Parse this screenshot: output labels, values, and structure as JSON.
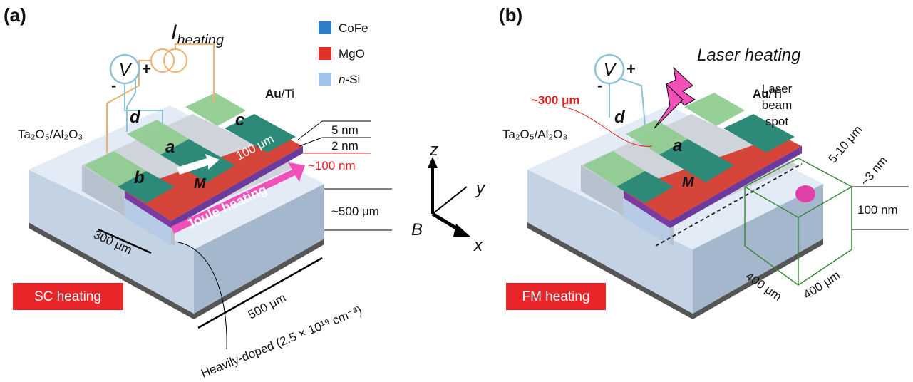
{
  "panel_a": {
    "label": "(a)",
    "current": {
      "main": "I",
      "sub": "heating"
    },
    "voltmeter": "V",
    "plus": "+",
    "minus": "-",
    "legend": [
      {
        "text": "CoFe"
      },
      {
        "text": "MgO"
      },
      {
        "italic": "n",
        "text": "-Si"
      }
    ],
    "electrode": {
      "bold": "Au",
      "rest": "/Ti"
    },
    "contacts": [
      "d",
      "c",
      "a",
      "b"
    ],
    "magnetization": "M",
    "layers": [
      "5 nm",
      "2 nm",
      "~100 nm"
    ],
    "width": "100 μm",
    "insulator": "Ta₂O₅/Al₂O₃",
    "heating": "Joule heating",
    "thickness": "~500 μm",
    "channel_width": "300 μm",
    "length": "500 μm",
    "doping": "Heavily-doped (2.5 × 10¹⁹ cm⁻³)",
    "badge": "SC heating"
  },
  "axes": {
    "z": "z",
    "y": "y",
    "x": "x",
    "field": "B"
  },
  "panel_b": {
    "label": "(b)",
    "title": "Laser heating",
    "voltmeter": "V",
    "plus": "+",
    "minus": "-",
    "distance": "~300 μm",
    "contacts": [
      "d",
      "a"
    ],
    "electrode": {
      "bold": "Au",
      "rest": "/Ti"
    },
    "spot": [
      "Laser",
      "beam",
      "spot"
    ],
    "spot_size": "5-10 μm",
    "depth": "~3 nm",
    "height": "100 nm",
    "magnetization": "M",
    "insulator": "Ta₂O₅/Al₂O₃",
    "box": [
      "400 μm",
      "400 μm"
    ],
    "badge": "FM heating"
  }
}
